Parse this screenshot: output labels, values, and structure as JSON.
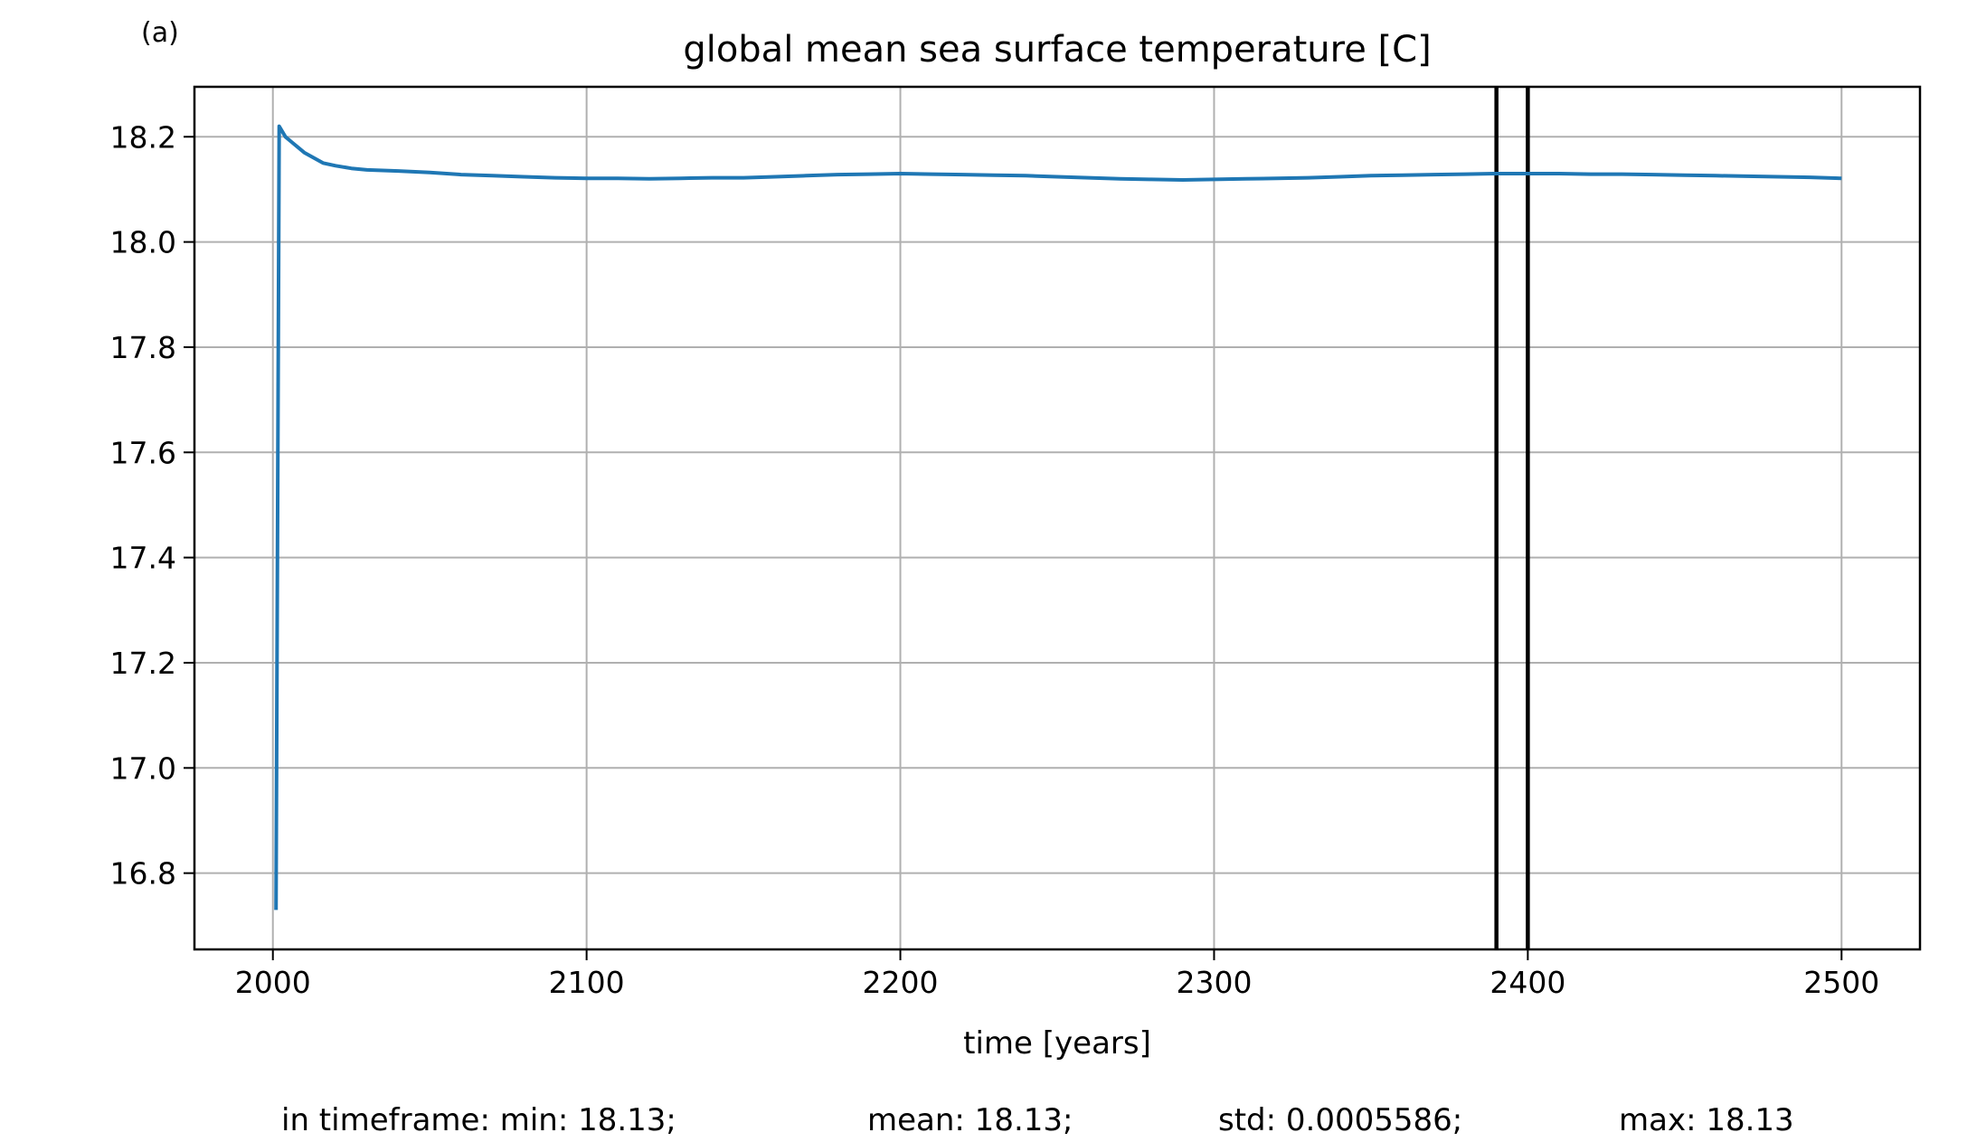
{
  "chart_data": {
    "type": "line",
    "panel_label": "(a)",
    "title": "global mean sea surface temperature [C]",
    "xlabel": "time [years]",
    "ylabel": "",
    "xlim": [
      1975,
      2525
    ],
    "ylim": [
      16.655,
      18.295
    ],
    "grid": true,
    "xticks": [
      2000,
      2100,
      2200,
      2300,
      2400,
      2500
    ],
    "xtick_labels": [
      "2000",
      "2100",
      "2200",
      "2300",
      "2400",
      "2500"
    ],
    "yticks": [
      16.8,
      17.0,
      17.2,
      17.4,
      17.6,
      17.8,
      18.0,
      18.2
    ],
    "ytick_labels": [
      "16.8",
      "17.0",
      "17.2",
      "17.4",
      "17.6",
      "17.8",
      "18.0",
      "18.2"
    ],
    "series": [
      {
        "name": "global mean SST",
        "color": "#1f77b4",
        "x": [
          2001,
          2002,
          2004,
          2006,
          2008,
          2010,
          2013,
          2016,
          2020,
          2025,
          2030,
          2040,
          2050,
          2060,
          2070,
          2080,
          2090,
          2100,
          2110,
          2120,
          2130,
          2140,
          2150,
          2160,
          2170,
          2180,
          2190,
          2200,
          2210,
          2220,
          2230,
          2240,
          2250,
          2260,
          2270,
          2280,
          2290,
          2300,
          2310,
          2320,
          2330,
          2340,
          2350,
          2360,
          2370,
          2380,
          2390,
          2400,
          2410,
          2420,
          2430,
          2440,
          2450,
          2460,
          2470,
          2480,
          2490,
          2500
        ],
        "y": [
          16.73,
          18.22,
          18.2,
          18.19,
          18.18,
          18.17,
          18.16,
          18.15,
          18.145,
          18.14,
          18.137,
          18.135,
          18.132,
          18.128,
          18.126,
          18.124,
          18.122,
          18.121,
          18.121,
          18.12,
          18.121,
          18.122,
          18.122,
          18.124,
          18.126,
          18.128,
          18.129,
          18.13,
          18.129,
          18.128,
          18.127,
          18.126,
          18.124,
          18.122,
          18.12,
          18.119,
          18.118,
          18.119,
          18.12,
          18.121,
          18.122,
          18.124,
          18.126,
          18.127,
          18.128,
          18.129,
          18.13,
          18.13,
          18.13,
          18.129,
          18.129,
          18.128,
          18.127,
          18.126,
          18.125,
          18.124,
          18.123,
          18.121
        ]
      }
    ],
    "vlines": [
      {
        "x": 2390,
        "color": "#000000"
      },
      {
        "x": 2400,
        "color": "#000000"
      }
    ],
    "annotations": {
      "stats_min": "in timeframe: min: 18.13;",
      "stats_mean": "mean: 18.13;",
      "stats_std": "std: 0.0005586;",
      "stats_max": "max: 18.13"
    }
  }
}
